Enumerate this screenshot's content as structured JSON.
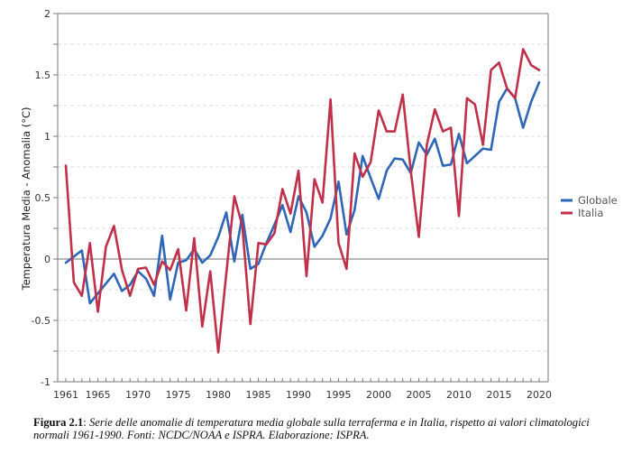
{
  "chart_data": {
    "type": "line",
    "title": "",
    "xlabel": "",
    "ylabel": "Temperatura Media - Anomalia (°C)",
    "xlim": [
      1960,
      2021
    ],
    "ylim": [
      -1,
      2
    ],
    "y_major_ticks": [
      -1,
      -0.5,
      0,
      0.5,
      1,
      1.5,
      2
    ],
    "y_major_tick_labels": [
      "-1",
      "-0.5",
      "0",
      "0.5",
      "1",
      "1.5",
      "2"
    ],
    "y_minor_ticks": [
      -0.75,
      -0.25,
      0.25,
      0.75,
      1.25,
      1.75
    ],
    "x_tick_labels": [
      "1961",
      "1965",
      "1970",
      "1975",
      "1980",
      "1985",
      "1990",
      "1995",
      "2000",
      "2005",
      "2010",
      "2015",
      "2020"
    ],
    "x_tick_values": [
      1961,
      1965,
      1970,
      1975,
      1980,
      1985,
      1990,
      1995,
      2000,
      2005,
      2010,
      2015,
      2020
    ],
    "x_minor_ticks": "every year",
    "grid": "horizontal dashed at every 0.25",
    "zero_line": true,
    "legend_position": "right",
    "x": [
      1961,
      1962,
      1963,
      1964,
      1965,
      1966,
      1967,
      1968,
      1969,
      1970,
      1971,
      1972,
      1973,
      1974,
      1975,
      1976,
      1977,
      1978,
      1979,
      1980,
      1981,
      1982,
      1983,
      1984,
      1985,
      1986,
      1987,
      1988,
      1989,
      1990,
      1991,
      1992,
      1993,
      1994,
      1995,
      1996,
      1997,
      1998,
      1999,
      2000,
      2001,
      2002,
      2003,
      2004,
      2005,
      2006,
      2007,
      2008,
      2009,
      2010,
      2011,
      2012,
      2013,
      2014,
      2015,
      2016,
      2017,
      2018,
      2019,
      2020
    ],
    "series": [
      {
        "name": "Globale",
        "color": "#2e66b8",
        "values": [
          -0.03,
          0.02,
          0.07,
          -0.36,
          -0.28,
          -0.2,
          -0.12,
          -0.26,
          -0.21,
          -0.1,
          -0.16,
          -0.3,
          0.19,
          -0.33,
          -0.03,
          -0.01,
          0.08,
          -0.03,
          0.03,
          0.18,
          0.38,
          -0.02,
          0.36,
          -0.08,
          -0.04,
          0.13,
          0.28,
          0.44,
          0.22,
          0.51,
          0.38,
          0.1,
          0.19,
          0.33,
          0.63,
          0.2,
          0.4,
          0.84,
          0.66,
          0.49,
          0.72,
          0.82,
          0.81,
          0.7,
          0.95,
          0.85,
          0.98,
          0.76,
          0.77,
          1.02,
          0.78,
          0.84,
          0.9,
          0.89,
          1.28,
          1.39,
          1.31,
          1.07,
          1.28,
          1.44
        ]
      },
      {
        "name": "Italia",
        "color": "#c0304a",
        "values": [
          0.76,
          -0.19,
          -0.3,
          0.13,
          -0.43,
          0.1,
          0.27,
          -0.09,
          -0.3,
          -0.08,
          -0.07,
          -0.21,
          -0.02,
          -0.09,
          0.08,
          -0.42,
          0.17,
          -0.55,
          -0.1,
          -0.76,
          -0.12,
          0.51,
          0.27,
          -0.53,
          0.13,
          0.12,
          0.21,
          0.57,
          0.37,
          0.72,
          -0.14,
          0.65,
          0.46,
          1.3,
          0.13,
          -0.08,
          0.86,
          0.67,
          0.79,
          1.21,
          1.04,
          1.04,
          1.34,
          0.72,
          0.18,
          0.93,
          1.22,
          1.04,
          1.07,
          0.35,
          1.31,
          1.26,
          0.93,
          1.54,
          1.6,
          1.39,
          1.31,
          1.71,
          1.58,
          1.54
        ]
      }
    ]
  },
  "caption": {
    "label": "Figura 2.1",
    "separator": ": ",
    "text": "Serie delle anomalie di temperatura media globale sulla terraferma e in Italia, rispetto ai valori climatologici normali 1961-1990. Fonti: NCDC/NOAA e ISPRA. Elaborazione: ISPRA."
  }
}
